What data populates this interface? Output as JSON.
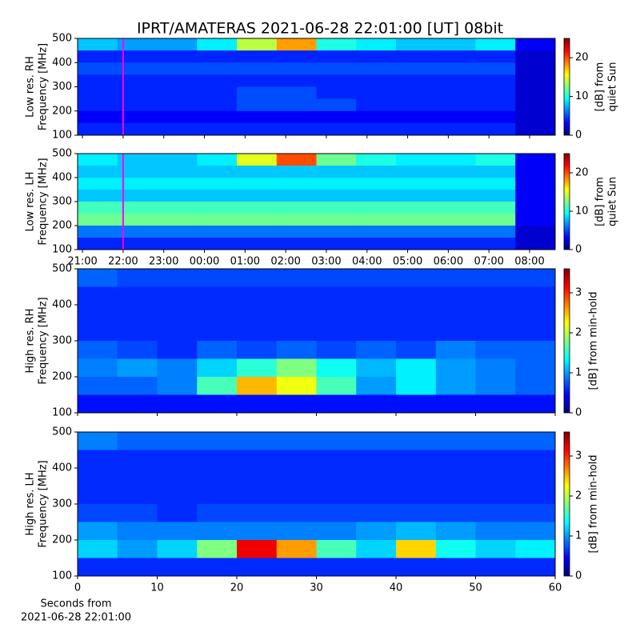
{
  "chart_data": [
    {
      "type": "heatmap",
      "title": "IPRT/AMATERAS 2021-06-28 22:01:00 [UT]   08bit",
      "ylabel": [
        "Low res. RH",
        "Frequency [MHz]"
      ],
      "colormap": "jet",
      "xlim": [
        20.88,
        32.63
      ],
      "ylim": [
        100,
        500
      ],
      "yticks": [
        100,
        200,
        300,
        400,
        500
      ],
      "vline": {
        "x": 22,
        "color": "#ff00ff"
      },
      "clim": [
        0,
        25
      ],
      "cticks": [
        0,
        10,
        20
      ],
      "colorbar_label": [
        "[dB] from",
        "quiet Sun"
      ],
      "z": [
        [
          8,
          7,
          7,
          9,
          14,
          18,
          10,
          9,
          8,
          8,
          9,
          3
        ],
        [
          4,
          4,
          4,
          4,
          4,
          4,
          4,
          4,
          4,
          4,
          4,
          2
        ],
        [
          5,
          5,
          5,
          5,
          5,
          5,
          5,
          5,
          5,
          5,
          5,
          2
        ],
        [
          4,
          4,
          4,
          4,
          4,
          4,
          4,
          4,
          4,
          4,
          4,
          2
        ],
        [
          4,
          4,
          4,
          4,
          5,
          5,
          4,
          4,
          4,
          4,
          4,
          2
        ],
        [
          4,
          4,
          4,
          4,
          5,
          5,
          5,
          4,
          4,
          4,
          4,
          2
        ],
        [
          3,
          3,
          3,
          3,
          3,
          3,
          3,
          3,
          3,
          3,
          3,
          2
        ],
        [
          4,
          4,
          4,
          4,
          4,
          4,
          4,
          4,
          4,
          4,
          4,
          2
        ]
      ]
    },
    {
      "type": "heatmap",
      "ylabel": [
        "Low res. LH",
        "Frequency [MHz]"
      ],
      "colormap": "jet",
      "xlim": [
        20.88,
        32.63
      ],
      "ylim": [
        100,
        500
      ],
      "yticks": [
        100,
        200,
        300,
        400,
        500
      ],
      "xticks": [
        {
          "value": 21,
          "label": "21:00"
        },
        {
          "value": 22,
          "label": "22:00"
        },
        {
          "value": 23,
          "label": "23:00"
        },
        {
          "value": 24,
          "label": "00:00"
        },
        {
          "value": 25,
          "label": "01:00"
        },
        {
          "value": 26,
          "label": "02:00"
        },
        {
          "value": 27,
          "label": "03:00"
        },
        {
          "value": 28,
          "label": "04:00"
        },
        {
          "value": 29,
          "label": "05:00"
        },
        {
          "value": 30,
          "label": "06:00"
        },
        {
          "value": 31,
          "label": "07:00"
        },
        {
          "value": 32,
          "label": "08:00"
        }
      ],
      "vline": {
        "x": 22,
        "color": "#ff00ff"
      },
      "clim": [
        0,
        25
      ],
      "cticks": [
        0,
        10,
        20
      ],
      "colorbar_label": [
        "[dB] from",
        "quiet Sun"
      ],
      "z": [
        [
          9,
          8,
          8,
          9,
          15,
          20,
          12,
          10,
          9,
          9,
          10,
          3
        ],
        [
          8,
          8,
          8,
          8,
          8,
          8,
          8,
          8,
          8,
          8,
          8,
          3
        ],
        [
          9,
          9,
          9,
          9,
          9,
          9,
          9,
          9,
          9,
          9,
          9,
          3
        ],
        [
          8,
          8,
          8,
          8,
          8,
          8,
          8,
          8,
          8,
          8,
          8,
          3
        ],
        [
          11,
          11,
          11,
          11,
          11,
          11,
          11,
          11,
          11,
          11,
          11,
          3
        ],
        [
          12,
          12,
          12,
          12,
          12,
          12,
          12,
          12,
          12,
          12,
          12,
          3
        ],
        [
          6,
          6,
          6,
          6,
          6,
          6,
          6,
          6,
          6,
          6,
          6,
          2
        ],
        [
          4,
          4,
          4,
          4,
          4,
          4,
          4,
          4,
          4,
          4,
          4,
          2
        ]
      ]
    },
    {
      "type": "heatmap",
      "ylabel": [
        "High res. RH",
        "Frequency [MHz]"
      ],
      "colormap": "jet",
      "xlim": [
        0,
        60
      ],
      "ylim": [
        100,
        500
      ],
      "yticks": [
        100,
        200,
        300,
        400,
        500
      ],
      "clim": [
        0,
        3.6
      ],
      "cticks": [
        0,
        1,
        2,
        3
      ],
      "colorbar_label": [
        "[dB] from min-hold"
      ],
      "z": [
        [
          0.8,
          0.7,
          0.7,
          0.7,
          0.7,
          0.7,
          0.7,
          0.7,
          0.7,
          0.7,
          0.7,
          0.7
        ],
        [
          0.6,
          0.6,
          0.6,
          0.6,
          0.6,
          0.6,
          0.6,
          0.6,
          0.6,
          0.6,
          0.6,
          0.6
        ],
        [
          0.6,
          0.6,
          0.6,
          0.6,
          0.6,
          0.6,
          0.6,
          0.6,
          0.6,
          0.6,
          0.6,
          0.6
        ],
        [
          0.6,
          0.6,
          0.6,
          0.6,
          0.6,
          0.6,
          0.6,
          0.6,
          0.6,
          0.6,
          0.6,
          0.6
        ],
        [
          0.8,
          0.7,
          0.6,
          0.8,
          0.7,
          0.8,
          0.7,
          0.8,
          0.7,
          0.9,
          0.8,
          0.8
        ],
        [
          0.9,
          1.0,
          0.9,
          1.2,
          1.5,
          1.8,
          1.4,
          1.1,
          1.3,
          1.0,
          0.9,
          0.8
        ],
        [
          0.8,
          0.8,
          0.9,
          1.6,
          2.5,
          2.2,
          1.6,
          1.0,
          1.3,
          1.0,
          0.9,
          0.8
        ],
        [
          0.5,
          0.5,
          0.5,
          0.5,
          0.5,
          0.5,
          0.5,
          0.5,
          0.5,
          0.5,
          0.5,
          0.5
        ]
      ]
    },
    {
      "type": "heatmap",
      "ylabel": [
        "High res. LH",
        "Frequency [MHz]"
      ],
      "colormap": "jet",
      "xlim": [
        0,
        60
      ],
      "ylim": [
        100,
        500
      ],
      "yticks": [
        100,
        200,
        300,
        400,
        500
      ],
      "xticks": [
        0,
        10,
        20,
        30,
        40,
        50,
        60
      ],
      "xlabel": [
        "Seconds from",
        "2021-06-28 22:01:00"
      ],
      "clim": [
        0,
        3.6
      ],
      "cticks": [
        0,
        1,
        2,
        3
      ],
      "colorbar_label": [
        "[dB] from min-hold"
      ],
      "z": [
        [
          0.9,
          0.8,
          0.8,
          0.8,
          0.8,
          0.8,
          0.8,
          0.8,
          0.8,
          0.8,
          0.8,
          0.8
        ],
        [
          0.6,
          0.6,
          0.6,
          0.6,
          0.6,
          0.6,
          0.6,
          0.6,
          0.6,
          0.6,
          0.6,
          0.6
        ],
        [
          0.6,
          0.6,
          0.6,
          0.6,
          0.6,
          0.6,
          0.6,
          0.6,
          0.6,
          0.6,
          0.6,
          0.6
        ],
        [
          0.6,
          0.6,
          0.6,
          0.6,
          0.6,
          0.6,
          0.6,
          0.6,
          0.6,
          0.6,
          0.6,
          0.6
        ],
        [
          0.7,
          0.7,
          0.6,
          0.7,
          0.7,
          0.7,
          0.7,
          0.7,
          0.7,
          0.7,
          0.7,
          0.7
        ],
        [
          1.0,
          0.9,
          0.9,
          0.9,
          0.9,
          0.9,
          0.9,
          1.0,
          1.1,
          1.0,
          0.9,
          0.9
        ],
        [
          1.2,
          1.0,
          1.2,
          1.8,
          3.2,
          2.6,
          1.6,
          1.2,
          2.4,
          1.4,
          1.2,
          1.3
        ],
        [
          0.6,
          0.6,
          0.6,
          0.6,
          0.6,
          0.6,
          0.6,
          0.6,
          0.6,
          0.6,
          0.6,
          0.6
        ]
      ]
    }
  ]
}
